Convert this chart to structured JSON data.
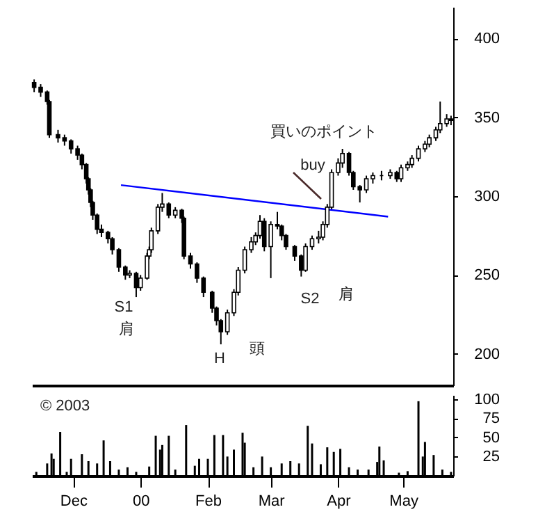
{
  "chart_data": [
    {
      "type": "candlestick",
      "color": "#000000",
      "tick_labels": "y",
      "x": [
        "1999-11-13",
        "1999-11-16",
        "1999-11-19",
        "1999-11-20",
        "1999-11-24",
        "1999-11-27",
        "1999-11-30",
        "1999-12-03",
        "1999-12-05",
        "1999-12-07",
        "1999-12-08",
        "1999-12-09",
        "1999-12-10",
        "1999-12-12",
        "1999-12-14",
        "1999-12-17",
        "1999-12-19",
        "1999-12-22",
        "1999-12-25",
        "1999-12-27",
        "1999-12-30",
        "2000-01-01",
        "2000-01-04",
        "2000-01-05",
        "2000-01-06",
        "2000-01-09",
        "2000-01-11",
        "2000-01-14",
        "2000-01-17",
        "2000-01-20",
        "2000-01-21",
        "2000-01-24",
        "2000-01-27",
        "2000-01-30",
        "2000-02-03",
        "2000-02-05",
        "2000-02-07",
        "2000-02-10",
        "2000-02-13",
        "2000-02-15",
        "2000-02-18",
        "2000-02-21",
        "2000-02-23",
        "2000-02-25",
        "2000-02-27",
        "2000-03-01",
        "2000-03-04",
        "2000-03-06",
        "2000-03-08",
        "2000-03-12",
        "2000-03-15",
        "2000-03-17",
        "2000-03-20",
        "2000-03-23",
        "2000-03-25",
        "2000-03-27",
        "2000-03-29",
        "2000-04-01",
        "2000-04-03",
        "2000-04-06",
        "2000-04-08",
        "2000-04-11",
        "2000-04-14",
        "2000-04-17",
        "2000-04-21",
        "2000-04-25",
        "2000-04-28",
        "2000-04-30",
        "2000-05-03",
        "2000-05-05",
        "2000-05-08",
        "2000-05-11",
        "2000-05-13",
        "2000-05-16",
        "2000-05-18",
        "2000-05-21",
        "2000-05-23"
      ],
      "ohlc": [
        [
          372,
          374,
          366,
          369
        ],
        [
          369,
          371,
          363,
          366
        ],
        [
          366,
          367,
          358,
          360
        ],
        [
          360,
          361,
          337,
          339
        ],
        [
          339,
          342,
          334,
          337
        ],
        [
          337,
          339,
          332,
          335
        ],
        [
          335,
          336,
          327,
          330
        ],
        [
          330,
          332,
          323,
          326
        ],
        [
          326,
          327,
          317,
          320
        ],
        [
          320,
          321,
          308,
          311
        ],
        [
          311,
          312,
          301,
          304
        ],
        [
          304,
          305,
          293,
          296
        ],
        [
          296,
          297,
          285,
          288
        ],
        [
          288,
          289,
          276,
          279
        ],
        [
          279,
          282,
          274,
          277
        ],
        [
          277,
          278,
          270,
          273
        ],
        [
          273,
          274,
          263,
          266
        ],
        [
          266,
          267,
          252,
          255
        ],
        [
          255,
          256,
          247,
          250
        ],
        [
          250,
          253,
          248,
          251
        ],
        [
          251,
          252,
          236,
          242
        ],
        [
          242,
          250,
          240,
          248
        ],
        [
          248,
          264,
          247,
          262
        ],
        [
          262,
          268,
          260,
          266
        ],
        [
          266,
          280,
          264,
          278
        ],
        [
          278,
          295,
          276,
          293
        ],
        [
          293,
          302,
          290,
          295
        ],
        [
          295,
          296,
          286,
          288
        ],
        [
          288,
          293,
          286,
          291
        ],
        [
          291,
          292,
          283,
          286
        ],
        [
          286,
          287,
          260,
          262
        ],
        [
          262,
          264,
          254,
          257
        ],
        [
          257,
          258,
          245,
          248
        ],
        [
          248,
          249,
          236,
          239
        ],
        [
          239,
          240,
          226,
          229
        ],
        [
          229,
          230,
          218,
          221
        ],
        [
          221,
          222,
          206,
          214
        ],
        [
          214,
          228,
          212,
          226
        ],
        [
          226,
          241,
          224,
          239
        ],
        [
          239,
          255,
          237,
          253
        ],
        [
          253,
          268,
          251,
          266
        ],
        [
          266,
          274,
          264,
          271
        ],
        [
          271,
          277,
          269,
          275
        ],
        [
          275,
          288,
          273,
          284
        ],
        [
          284,
          286,
          265,
          268
        ],
        [
          268,
          284,
          248,
          282
        ],
        [
          282,
          290,
          279,
          281
        ],
        [
          281,
          282,
          272,
          275
        ],
        [
          275,
          276,
          266,
          268
        ],
        [
          268,
          269,
          259,
          262
        ],
        [
          262,
          263,
          249,
          253
        ],
        [
          253,
          270,
          252,
          268
        ],
        [
          268,
          275,
          266,
          273
        ],
        [
          273,
          278,
          270,
          274
        ],
        [
          274,
          284,
          272,
          282
        ],
        [
          282,
          295,
          280,
          293
        ],
        [
          293,
          317,
          291,
          315
        ],
        [
          315,
          324,
          313,
          321
        ],
        [
          321,
          330,
          318,
          327
        ],
        [
          327,
          328,
          313,
          315
        ],
        [
          315,
          316,
          304,
          306
        ],
        [
          306,
          307,
          296,
          304
        ],
        [
          304,
          313,
          302,
          311
        ],
        [
          311,
          315,
          308,
          313
        ],
        [
          313,
          316,
          310,
          313
        ],
        [
          313,
          317,
          311,
          315
        ],
        [
          315,
          316,
          309,
          311
        ],
        [
          311,
          320,
          309,
          318
        ],
        [
          318,
          322,
          316,
          320
        ],
        [
          320,
          326,
          318,
          324
        ],
        [
          324,
          332,
          322,
          330
        ],
        [
          330,
          335,
          328,
          333
        ],
        [
          333,
          339,
          331,
          337
        ],
        [
          337,
          344,
          335,
          342
        ],
        [
          342,
          360,
          340,
          346
        ],
        [
          346,
          352,
          344,
          349
        ],
        [
          349,
          351,
          345,
          348
        ]
      ],
      "series": [
        {
          "type": "line",
          "color": "#0000ff",
          "x": [
            "1999-12-23",
            "2000-04-24"
          ],
          "values": [
            307,
            287
          ]
        }
      ],
      "annotations": [
        "買いのポイント",
        "buy",
        "S1",
        "肩",
        "H",
        "頭",
        "S2",
        "肩"
      ],
      "xlim": [
        "1999-11-12",
        "2000-05-24"
      ],
      "ylim": [
        180,
        420
      ],
      "yticks": [
        200,
        250,
        300,
        350,
        400
      ]
    },
    {
      "type": "bar",
      "color": "#000000",
      "x": [
        "1999-11-14",
        "1999-11-19",
        "1999-11-21",
        "1999-11-22",
        "1999-11-25",
        "1999-11-28",
        "1999-11-30",
        "1999-12-05",
        "1999-12-08",
        "1999-12-12",
        "1999-12-15",
        "1999-12-18",
        "1999-12-22",
        "1999-12-26",
        "1999-12-30",
        "2000-01-05",
        "2000-01-08",
        "2000-01-10",
        "2000-01-11",
        "2000-01-14",
        "2000-01-17",
        "2000-01-22",
        "2000-01-26",
        "2000-01-28",
        "2000-02-01",
        "2000-02-04",
        "2000-02-08",
        "2000-02-10",
        "2000-02-13",
        "2000-02-17",
        "2000-02-18",
        "2000-02-22",
        "2000-02-26",
        "2000-03-01",
        "2000-03-06",
        "2000-03-10",
        "2000-03-14",
        "2000-03-18",
        "2000-03-20",
        "2000-03-24",
        "2000-03-27",
        "2000-03-30",
        "2000-04-02",
        "2000-04-06",
        "2000-04-10",
        "2000-04-15",
        "2000-04-19",
        "2000-04-20",
        "2000-04-22",
        "2000-04-29",
        "2000-05-03",
        "2000-05-08",
        "2000-05-10",
        "2000-05-11",
        "2000-05-15",
        "2000-05-19",
        "2000-05-23"
      ],
      "values": [
        5,
        16,
        29,
        22,
        57,
        5,
        22,
        28,
        19,
        16,
        46,
        19,
        8,
        11,
        5,
        12,
        52,
        34,
        40,
        52,
        8,
        66,
        13,
        22,
        22,
        53,
        53,
        25,
        34,
        56,
        43,
        11,
        25,
        11,
        16,
        19,
        16,
        65,
        42,
        15,
        37,
        31,
        35,
        11,
        8,
        8,
        18,
        38,
        20,
        4,
        6,
        97,
        25,
        44,
        27,
        8,
        5
      ],
      "annotations": [
        "© 2003"
      ],
      "xlim": [
        "1999-11-12",
        "2000-05-24"
      ],
      "xticks": [
        {
          "value": "1999-12-01",
          "label": "Dec"
        },
        {
          "value": "2000-01-01",
          "label": "00"
        },
        {
          "value": "2000-02-01",
          "label": "Feb"
        },
        {
          "value": "2000-03-01",
          "label": "Mar"
        },
        {
          "value": "2000-04-01",
          "label": "Apr"
        },
        {
          "value": "2000-05-01",
          "label": "May"
        }
      ],
      "ylim": [
        0,
        105
      ],
      "yticks": [
        25,
        50,
        75,
        100
      ]
    }
  ]
}
